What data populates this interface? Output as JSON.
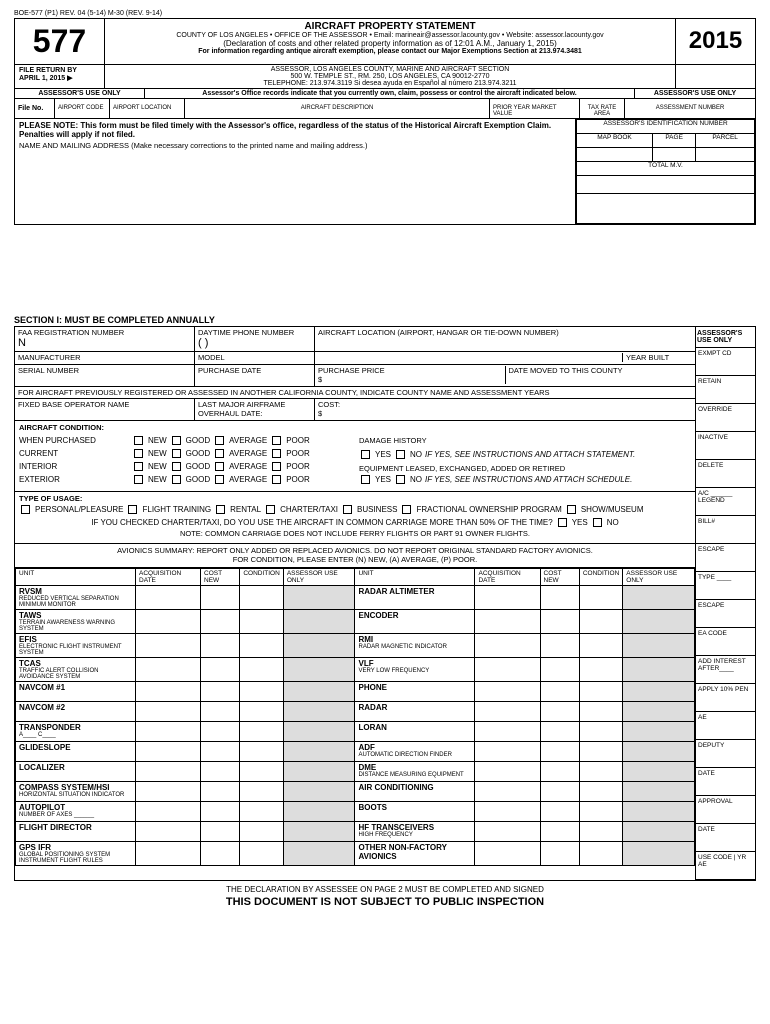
{
  "meta": {
    "topline": "BOE-577 (P1) REV. 04 (5-14) M-30 (REV. 9-14)"
  },
  "header": {
    "formno": "577",
    "title": "AIRCRAFT PROPERTY STATEMENT",
    "line1": "COUNTY OF LOS ANGELES • OFFICE OF THE ASSESSOR • Email: marineair@assessor.lacounty.gov • Website: assessor.lacounty.gov",
    "line2": "(Declaration of costs and other related property information as of 12:01 A.M., January 1, 2015)",
    "line3": "For information regarding antique aircraft exemption, please contact our Major Exemptions Section at 213.974.3481",
    "year": "2015",
    "return_by_l1": "FILE RETURN BY",
    "return_by_l2": "APRIL 1, 2015 ▶",
    "addr1": "ASSESSOR, LOS ANGELES COUNTY, MARINE AND AIRCRAFT SECTION",
    "addr2": "500 W. TEMPLE ST., RM. 250, LOS ANGELES, CA 90012-2770",
    "addr3": "TELEPHONE: 213.974.3119 Si desea ayuda en Español al número 213.974.3211",
    "auo_left": "ASSESSOR'S USE ONLY",
    "auo_mid": "Assessor's Office records indicate that you currently own, claim, possess or control the aircraft indicated below.",
    "auo_right": "ASSESSOR'S USE ONLY",
    "fileno": "File No.",
    "airport_code": "AIRPORT CODE",
    "airport_loc": "AIRPORT LOCATION",
    "aircraft_desc": "AIRCRAFT DESCRIPTION",
    "pymv": "PRIOR YEAR MARKET VALUE",
    "taxrate": "TAX RATE AREA",
    "assess_num": "ASSESSMENT NUMBER",
    "aid": "ASSESSOR'S IDENTIFICATION NUMBER",
    "mapbook": "MAP BOOK",
    "page": "PAGE",
    "parcel": "PARCEL",
    "totalmv": "TOTAL M.V.",
    "note": "PLEASE NOTE: This form must be filed timely with the Assessor's office, regardless of the status of the Historical Aircraft Exemption Claim.  Penalties will apply if not filed.",
    "nameaddr": "NAME AND MAILING ADDRESS  (Make necessary corrections to the printed name and mailing address.)"
  },
  "section1": {
    "heading": "SECTION I: MUST BE COMPLETED ANNUALLY",
    "faa": "FAA REGISTRATION NUMBER",
    "faa_val": "N",
    "phone": "DAYTIME PHONE NUMBER",
    "phone_val": "(        )",
    "loc": "AIRCRAFT LOCATION (AIRPORT, HANGAR OR TIE-DOWN NUMBER)",
    "assessor_only": "ASSESSOR'S USE ONLY",
    "mfr": "MANUFACTURER",
    "model": "MODEL",
    "yearbuilt": "YEAR BUILT",
    "serial": "SERIAL NUMBER",
    "purchdate": "PURCHASE DATE",
    "purchprice": "PURCHASE PRICE",
    "dollarsign": "$",
    "datemoved": "DATE MOVED TO THIS COUNTY",
    "prevreg": "FOR AIRCRAFT PREVIOUSLY REGISTERED OR ASSESSED IN ANOTHER CALIFORNIA COUNTY, INDICATE COUNTY NAME AND ASSESSMENT YEARS",
    "fbo": "FIXED BASE OPERATOR NAME",
    "overhaul": "LAST MAJOR AIRFRAME OVERHAUL DATE:",
    "cost": "COST:",
    "condition_hdr": "AIRCRAFT CONDITION:",
    "cond_rows": [
      "WHEN PURCHASED",
      "CURRENT",
      "INTERIOR",
      "EXTERIOR"
    ],
    "cond_opts": [
      "NEW",
      "GOOD",
      "AVERAGE",
      "POOR"
    ],
    "damage": "DAMAGE HISTORY",
    "yesno_stmt": "IF YES, SEE INSTRUCTIONS AND ATTACH STATEMENT.",
    "equip": "EQUIPMENT LEASED, EXCHANGED, ADDED OR RETIRED",
    "yesno_sched": "IF YES, SEE INSTRUCTIONS AND ATTACH SCHEDULE.",
    "yes": "YES",
    "no": "NO",
    "usage_hdr": "TYPE OF USAGE:",
    "usage_opts": [
      "PERSONAL/PLEASURE",
      "FLIGHT TRAINING",
      "RENTAL",
      "CHARTER/TAXI",
      "BUSINESS",
      "FRACTIONAL OWNERSHIP PROGRAM",
      "SHOW/MUSEUM"
    ],
    "usage_q": "IF YOU CHECKED CHARTER/TAXI, DO YOU USE THE AIRCRAFT IN COMMON CARRIAGE MORE THAN 50% OF THE TIME?",
    "usage_note": "NOTE: COMMON CARRIAGE DOES NOT INCLUDE FERRY FLIGHTS OR PART 91 OWNER FLIGHTS.",
    "avionics_hdr1": "AVIONICS SUMMARY: REPORT ONLY ADDED OR REPLACED AVIONICS. DO NOT REPORT ORIGINAL STANDARD FACTORY AVIONICS.",
    "avionics_hdr2": "FOR CONDITION, PLEASE ENTER (N) NEW, (A) AVERAGE, (P) POOR.",
    "sidebar": [
      "EXMPT CD",
      "RETAIN",
      "OVERRIDE",
      "INACTIVE",
      "DELETE",
      "A/C ______ LEGEND",
      "BILL#",
      "ESCAPE",
      "TYPE ____",
      "ESCAPE",
      "EA CODE",
      "ADD INTEREST AFTER____",
      "APPLY 10% PEN",
      "AE",
      "DEPUTY",
      "DATE",
      "APPROVAL",
      "DATE",
      "USE CODE | YR AE"
    ]
  },
  "avionics": {
    "headers": [
      "UNIT",
      "ACQUISITION DATE",
      "COST NEW",
      "CONDITION",
      "ASSESSOR USE ONLY"
    ],
    "left": [
      {
        "t": "RVSM",
        "s": "REDUCED VERTICAL SEPARATION MINIMUM MONITOR"
      },
      {
        "t": "TAWS",
        "s": "TERRAIN AWARENESS WARNING SYSTEM"
      },
      {
        "t": "EFIS",
        "s": "ELECTRONIC FLIGHT INSTRUMENT SYSTEM"
      },
      {
        "t": "TCAS",
        "s": "TRAFFIC ALERT COLLISION AVOIDANCE SYSTEM"
      },
      {
        "t": "NAVCOM #1",
        "s": ""
      },
      {
        "t": "NAVCOM #2",
        "s": ""
      },
      {
        "t": "TRANSPONDER",
        "s": "A____ C____"
      },
      {
        "t": "GLIDESLOPE",
        "s": ""
      },
      {
        "t": "LOCALIZER",
        "s": ""
      },
      {
        "t": "COMPASS SYSTEM/HSI",
        "s": "HORIZONTAL SITUATION INDICATOR"
      },
      {
        "t": "AUTOPILOT",
        "s": "NUMBER OF AXES ______"
      },
      {
        "t": "FLIGHT DIRECTOR",
        "s": ""
      },
      {
        "t": "GPS IFR",
        "s": "GLOBAL POSITIONING SYSTEM INSTRUMENT FLIGHT RULES"
      }
    ],
    "right": [
      {
        "t": "RADAR ALTIMETER",
        "s": ""
      },
      {
        "t": "ENCODER",
        "s": ""
      },
      {
        "t": "RMI",
        "s": "RADAR MAGNETIC INDICATOR"
      },
      {
        "t": "VLF",
        "s": "VERY LOW FREQUENCY"
      },
      {
        "t": "PHONE",
        "s": ""
      },
      {
        "t": "RADAR",
        "s": ""
      },
      {
        "t": "LORAN",
        "s": ""
      },
      {
        "t": "ADF",
        "s": "AUTOMATIC DIRECTION FINDER"
      },
      {
        "t": "DME",
        "s": "DISTANCE MEASURING EQUIPMENT"
      },
      {
        "t": "AIR CONDITIONING",
        "s": ""
      },
      {
        "t": "BOOTS",
        "s": ""
      },
      {
        "t": "HF TRANSCEIVERS",
        "s": "HIGH FREQUENCY"
      },
      {
        "t": "OTHER NON-FACTORY AVIONICS",
        "s": ""
      }
    ]
  },
  "footer": {
    "decl": "THE DECLARATION BY ASSESSEE ON PAGE 2 MUST BE COMPLETED AND SIGNED",
    "notpublic": "THIS DOCUMENT IS NOT SUBJECT TO PUBLIC INSPECTION"
  }
}
